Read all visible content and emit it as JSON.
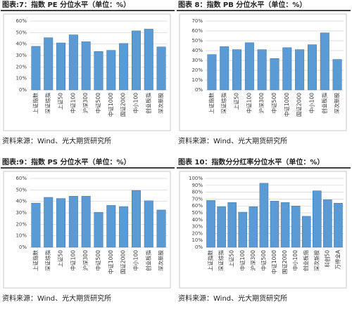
{
  "chart_data": [
    {
      "type": "bar",
      "title": "图表:7：指数 PE 分位水平（单位：%）",
      "source": "资料来源：Wind、光大期货研究所",
      "categories": [
        "上证指数",
        "深证综指",
        "上证50",
        "中证100",
        "沪深300",
        "中证500",
        "中证1000",
        "国证2000",
        "中小100",
        "创业板指",
        "深次新股"
      ],
      "values": [
        38,
        45.5,
        41,
        48,
        42,
        33.5,
        34.5,
        40.5,
        51.5,
        53,
        37.5
      ],
      "color": "#5b9bd5",
      "ylim": [
        0,
        60
      ],
      "yticks": [
        {
          "value": 0,
          "label": "0%"
        },
        {
          "value": 10,
          "label": "10%"
        },
        {
          "value": 20,
          "label": "20%"
        },
        {
          "value": 30,
          "label": "30%"
        },
        {
          "value": 40,
          "label": "40%"
        },
        {
          "value": 50,
          "label": "50%"
        },
        {
          "value": 60,
          "label": "60%"
        }
      ],
      "grid": true
    },
    {
      "type": "bar",
      "title": "图表 8：指数 PB 分位水平（单位：%）",
      "source": "资料来源：Wind、光大期货研究所",
      "categories": [
        "上证指数",
        "深证综指",
        "上证50",
        "中证100",
        "沪深300",
        "中证500",
        "中证1000",
        "国证2000",
        "中小100",
        "创业板指",
        "深次新股"
      ],
      "values": [
        36,
        44,
        41,
        48,
        41,
        32,
        43,
        41,
        46,
        58,
        31
      ],
      "color": "#5b9bd5",
      "ylim": [
        0,
        70
      ],
      "yticks": [
        {
          "value": 0,
          "label": "0%"
        },
        {
          "value": 10,
          "label": "10%"
        },
        {
          "value": 20,
          "label": "20%"
        },
        {
          "value": 30,
          "label": "30%"
        },
        {
          "value": 40,
          "label": "40%"
        },
        {
          "value": 50,
          "label": "50%"
        },
        {
          "value": 60,
          "label": "60%"
        },
        {
          "value": 70,
          "label": "70%"
        }
      ],
      "grid": true
    },
    {
      "type": "bar",
      "title": "图表:9：指数 PS 分位水平（单位：%）",
      "source": "资料来源：Wind、光大期货研究所",
      "categories": [
        "上证指数",
        "深证综指",
        "上证50",
        "中证100",
        "沪深300",
        "中证500",
        "中证1000",
        "国证2000",
        "中小100",
        "创业板指",
        "深次新股"
      ],
      "values": [
        38.5,
        43.5,
        42.5,
        44.5,
        44.5,
        30.5,
        36.5,
        35.5,
        49.5,
        40.5,
        32.5
      ],
      "color": "#5b9bd5",
      "ylim": [
        0,
        60
      ],
      "yticks": [
        {
          "value": 0,
          "label": "0%"
        },
        {
          "value": 10,
          "label": "10%"
        },
        {
          "value": 20,
          "label": "20%"
        },
        {
          "value": 30,
          "label": "30%"
        },
        {
          "value": 40,
          "label": "40%"
        },
        {
          "value": 50,
          "label": "50%"
        },
        {
          "value": 60,
          "label": "60%"
        }
      ],
      "grid": true
    },
    {
      "type": "bar",
      "title": "图表 10：指数分分红率分位水平（单位：%）",
      "source": "资料来源：Wind、光大期货研究所",
      "categories": [
        "上证指数",
        "深证综指",
        "上证50",
        "中证100",
        "沪深300",
        "中证500",
        "中证1000",
        "国证2000",
        "中小100",
        "创业板指",
        "深次新股",
        "科创50",
        "万得全A"
      ],
      "values": [
        68,
        59,
        65,
        51,
        59,
        93,
        67,
        65,
        60,
        45,
        82,
        69,
        64
      ],
      "color": "#5b9bd5",
      "ylim": [
        0,
        100
      ],
      "yticks": [
        {
          "value": 0,
          "label": "0%"
        },
        {
          "value": 10,
          "label": "10%"
        },
        {
          "value": 20,
          "label": "20%"
        },
        {
          "value": 30,
          "label": "30%"
        },
        {
          "value": 40,
          "label": "40%"
        },
        {
          "value": 50,
          "label": "50%"
        },
        {
          "value": 60,
          "label": "60%"
        },
        {
          "value": 70,
          "label": "70%"
        },
        {
          "value": 80,
          "label": "80%"
        },
        {
          "value": 90,
          "label": "90%"
        },
        {
          "value": 100,
          "label": "100%"
        }
      ],
      "grid": true
    }
  ]
}
